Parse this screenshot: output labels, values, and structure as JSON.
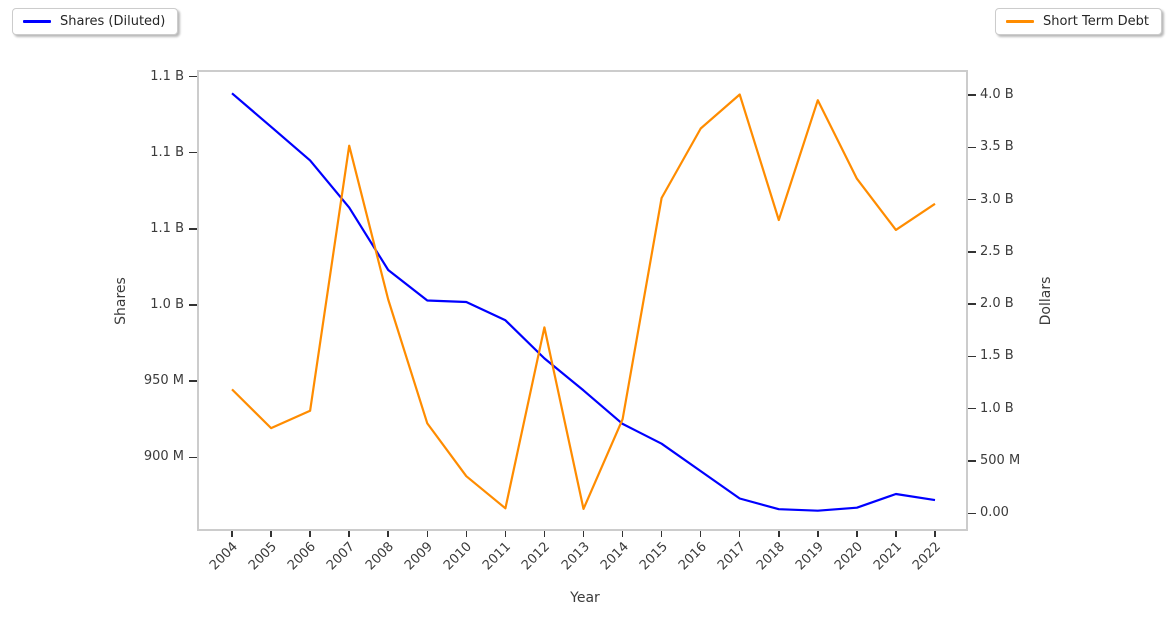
{
  "chart_data": {
    "type": "line",
    "title": "",
    "xlabel": "Year",
    "grid": false,
    "x_years": [
      2004,
      2005,
      2006,
      2007,
      2008,
      2009,
      2010,
      2011,
      2012,
      2013,
      2014,
      2015,
      2016,
      2017,
      2018,
      2019,
      2020,
      2021,
      2022
    ],
    "series": [
      {
        "name": "Shares (Diluted)",
        "axis": "left",
        "color": "#0000ff",
        "values_millions": [
          1139,
          1117,
          1095,
          1064,
          1023,
          1003,
          1002,
          990,
          965,
          944,
          922,
          909,
          891,
          873,
          866,
          865,
          867,
          876,
          872
        ]
      },
      {
        "name": "Short Term Debt",
        "axis": "right",
        "color": "#ff8c00",
        "values_millions": [
          1185,
          815,
          980,
          3515,
          2045,
          860,
          355,
          48,
          1778,
          42,
          900,
          3015,
          3680,
          4005,
          2805,
          3950,
          3200,
          2710,
          2960
        ]
      }
    ],
    "left_axis": {
      "label": "Shares",
      "range_millions": [
        853,
        1153
      ],
      "ticks": [
        {
          "value_millions": 900,
          "label": "900 M"
        },
        {
          "value_millions": 950,
          "label": "950 M"
        },
        {
          "value_millions": 1000,
          "label": "1.0 B"
        },
        {
          "value_millions": 1050,
          "label": "1.1 B"
        },
        {
          "value_millions": 1100,
          "label": "1.1 B"
        },
        {
          "value_millions": 1150,
          "label": "1.1 B"
        }
      ]
    },
    "right_axis": {
      "label": "Dollars",
      "range_millions": [
        -150,
        4220
      ],
      "ticks": [
        {
          "value_millions": 0,
          "label": "0.00"
        },
        {
          "value_millions": 500,
          "label": "500 M"
        },
        {
          "value_millions": 1000,
          "label": "1.0 B"
        },
        {
          "value_millions": 1500,
          "label": "1.5 B"
        },
        {
          "value_millions": 2000,
          "label": "2.0 B"
        },
        {
          "value_millions": 2500,
          "label": "2.5 B"
        },
        {
          "value_millions": 3000,
          "label": "3.0 B"
        },
        {
          "value_millions": 3500,
          "label": "3.5 B"
        },
        {
          "value_millions": 4000,
          "label": "4.0 B"
        }
      ]
    },
    "legend": {
      "left_entry": "Shares (Diluted)",
      "right_entry": "Short Term Debt"
    }
  }
}
